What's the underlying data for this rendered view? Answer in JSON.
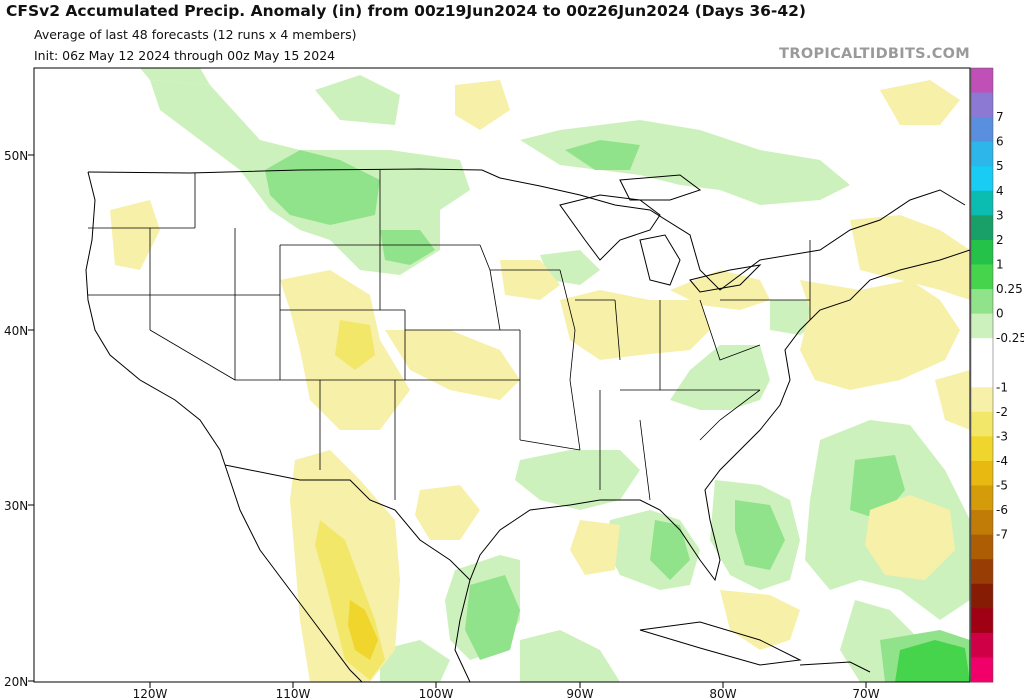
{
  "header": {
    "title": "CFSv2 Accumulated Precip. Anomaly (in) from 00z19Jun2024 to 00z26Jun2024 (Days 36-42)",
    "subtitle": "Average of last 48 forecasts (12 runs x 4 members)",
    "init": "Init: 06z May 12 2024 through 00z May 15 2024",
    "brand": "TROPICALTIDBITS.COM"
  },
  "map": {
    "projection": "Lambert-like, CONUS view",
    "lat_labels": [
      "50N",
      "40N",
      "30N",
      "20N"
    ],
    "lon_labels": [
      "120W",
      "110W",
      "100W",
      "90W",
      "80W",
      "70W"
    ]
  },
  "colorbar": {
    "units": "in",
    "colors": [
      "#c050b8",
      "#8b79d3",
      "#5a8fe0",
      "#2db6ea",
      "#18ccf4",
      "#0bbcb1",
      "#18a068",
      "#24c248",
      "#46d44d",
      "#90e38a",
      "#cdf1bc",
      "#ffffff",
      "#ffffff",
      "#f7f0a8",
      "#f3e76a",
      "#f0d52c",
      "#e8b910",
      "#d49c08",
      "#c07c06",
      "#ad5d04",
      "#983d04",
      "#861c04",
      "#a00014",
      "#cf0045",
      "#f1006a"
    ],
    "labels": [
      "7",
      "6",
      "5",
      "4",
      "3",
      "2",
      "1",
      "0.25",
      "0",
      "-0.25",
      "-1",
      "-2",
      "-3",
      "-4",
      "-5",
      "-6",
      "-7"
    ]
  }
}
